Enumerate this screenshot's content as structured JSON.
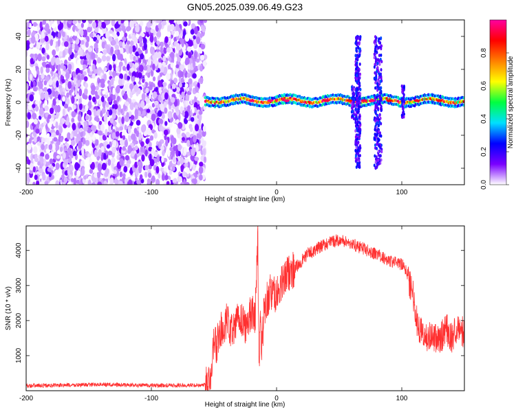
{
  "figure_title": "GN05.2025.039.06.49.G23",
  "chart_data": [
    {
      "type": "heatmap",
      "title": "GN05.2025.039.06.49.G23",
      "xlabel": "Height of straight line (km)",
      "ylabel": "Frequency (Hz)",
      "xlim": [
        -200,
        150
      ],
      "ylim": [
        -50,
        50
      ],
      "xticks": [
        -200,
        -100,
        0,
        100
      ],
      "yticks": [
        -40,
        -20,
        0,
        20,
        40
      ],
      "colorbar": {
        "label": "Normalized spectral amplitude",
        "range": [
          0,
          1
        ],
        "ticks": [
          "0.0",
          "0.2",
          "0.4",
          "0.6",
          "0.8"
        ],
        "tick_values": [
          0.0,
          0.2,
          0.4,
          0.6,
          0.8
        ],
        "colors": [
          "#ffffff",
          "#7a00ff",
          "#0000ff",
          "#00e0ff",
          "#00ff40",
          "#ffff00",
          "#ff8000",
          "#ff0000",
          "#ff00a0"
        ]
      },
      "regions": [
        {
          "x_from": -200,
          "x_to": -57,
          "freq_band": [
            -50,
            50
          ],
          "level": "0.0-0.15",
          "description": "noise"
        },
        {
          "x_from": -57,
          "x_to": 150,
          "freq_center": 1,
          "freq_halfwidth": 3,
          "level": "0.4-1.0"
        },
        {
          "x_from": 63,
          "x_to": 67,
          "freq_band": [
            -40,
            40
          ],
          "level": "0.1-0.3"
        },
        {
          "x_from": 78,
          "x_to": 84,
          "freq_band": [
            -40,
            40
          ],
          "level": "0.1-0.3"
        }
      ]
    },
    {
      "type": "line",
      "xlabel": "Height of straight line (km)",
      "ylabel": "SNR (10 * v/v)",
      "xlim": [
        -200,
        150
      ],
      "ylim": [
        0,
        4700
      ],
      "xticks": [
        -200,
        -100,
        0,
        100
      ],
      "yticks": [
        1000,
        2000,
        3000,
        4000
      ],
      "color": "#ff3030",
      "series": [
        {
          "x": [
            -200,
            -180,
            -160,
            -140,
            -120,
            -100,
            -80,
            -60,
            -55,
            -52,
            -50,
            -48,
            -45,
            -42,
            -40,
            -35,
            -30,
            -25,
            -20,
            -17,
            -15,
            -14,
            -13,
            -12,
            -10,
            -5,
            0,
            5,
            10,
            15,
            20,
            25,
            30,
            35,
            40,
            45,
            50,
            55,
            60,
            65,
            70,
            75,
            80,
            85,
            90,
            95,
            100,
            103,
            105,
            107,
            110,
            112,
            115,
            120,
            125,
            130,
            135,
            140,
            145,
            150
          ],
          "y": [
            150,
            150,
            160,
            180,
            160,
            150,
            150,
            160,
            180,
            700,
            1500,
            1200,
            1800,
            1400,
            2000,
            1600,
            2200,
            1800,
            2300,
            2100,
            4500,
            300,
            2600,
            1000,
            2400,
            2800,
            2700,
            3100,
            3400,
            3500,
            3700,
            3900,
            4000,
            4100,
            4200,
            4250,
            4300,
            4250,
            4200,
            4100,
            4050,
            3950,
            3900,
            3800,
            3700,
            3650,
            3600,
            3450,
            3300,
            3000,
            2600,
            2000,
            1700,
            1500,
            1600,
            1400,
            1800,
            1500,
            1900,
            1600
          ]
        }
      ]
    }
  ]
}
